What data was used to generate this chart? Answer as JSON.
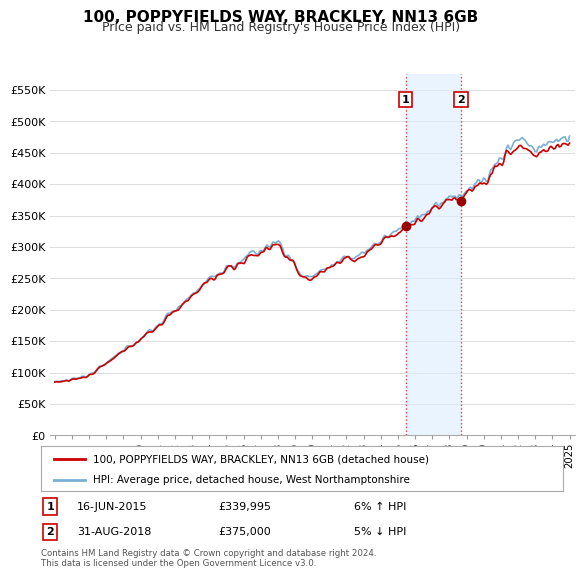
{
  "title": "100, POPPYFIELDS WAY, BRACKLEY, NN13 6GB",
  "subtitle": "Price paid vs. HM Land Registry's House Price Index (HPI)",
  "ylabel_ticks": [
    "£0",
    "£50K",
    "£100K",
    "£150K",
    "£200K",
    "£250K",
    "£300K",
    "£350K",
    "£400K",
    "£450K",
    "£500K",
    "£550K"
  ],
  "ytick_values": [
    0,
    50000,
    100000,
    150000,
    200000,
    250000,
    300000,
    350000,
    400000,
    450000,
    500000,
    550000
  ],
  "ylim": [
    0,
    575000
  ],
  "transaction1": {
    "date_label": "16-JUN-2015",
    "price": 339995,
    "change": "6% ↑ HPI",
    "marker": "1",
    "year": 2015.46
  },
  "transaction2": {
    "date_label": "31-AUG-2018",
    "price": 375000,
    "change": "5% ↓ HPI",
    "marker": "2",
    "year": 2018.67
  },
  "line_color_price": "#cc0000",
  "line_color_hpi": "#7ab0d4",
  "shade_color": "#ddeeff",
  "legend_label_price": "100, POPPYFIELDS WAY, BRACKLEY, NN13 6GB (detached house)",
  "legend_label_hpi": "HPI: Average price, detached house, West Northamptonshire",
  "footnote": "Contains HM Land Registry data © Crown copyright and database right 2024.\nThis data is licensed under the Open Government Licence v3.0.",
  "background_color": "#ffffff",
  "grid_color": "#dddddd",
  "title_fontsize": 11,
  "subtitle_fontsize": 9
}
